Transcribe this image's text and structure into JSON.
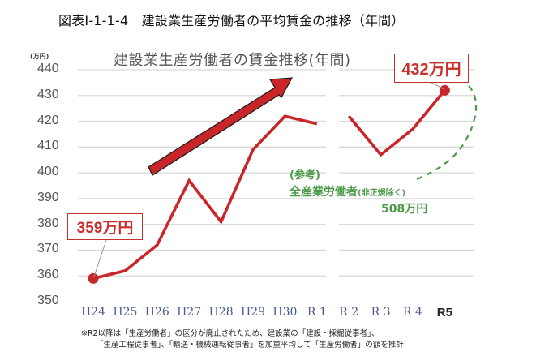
{
  "figure_title": "図表Ⅰ-1-1-4　建設業生産労働者の平均賃金の推移（年間）",
  "chart_data": {
    "type": "line",
    "title": "建設業生産労働者の賃金推移(年間)",
    "ylabel": "(万円)",
    "xlabel": "",
    "ylim": [
      350,
      440
    ],
    "yticks": [
      440,
      430,
      420,
      410,
      400,
      390,
      380,
      370,
      360,
      350
    ],
    "grid": true,
    "categories": [
      "H24",
      "H25",
      "H26",
      "H27",
      "H28",
      "H29",
      "H30",
      "R1",
      "R2",
      "R3",
      "R4",
      "R5"
    ],
    "series": [
      {
        "name": "建設業生産労働者",
        "color": "#c9262a",
        "values": [
          359,
          362,
          372,
          397,
          381,
          409,
          422,
          419,
          422,
          407,
          417,
          432
        ],
        "break_between": [
          "R1",
          "R2"
        ]
      }
    ],
    "annotations": [
      {
        "label": "359万円",
        "point": "H24"
      },
      {
        "label": "432万円",
        "point": "R5"
      },
      {
        "label": "(参考)",
        "color": "#4c9a4a"
      },
      {
        "label": "全産業労働者",
        "sub": "(非正規除く)",
        "color": "#4c9a4a"
      },
      {
        "label": "508万円",
        "color": "#4c9a4a"
      },
      {
        "label": "trend-arrow-up",
        "color": "#c9262a"
      }
    ],
    "legend": "none"
  },
  "labels": {
    "unit": "(万円)",
    "callout_start": "359万円",
    "callout_end": "432万円",
    "ref_heading": "(参考)",
    "ref_name": "全産業労働者",
    "ref_sub": "(非正規除く)",
    "ref_value": "508万円"
  },
  "notes": [
    "※R2以降は「生産労働者」の区分が廃止されたため、建設業の「建設・採掘従事者」、",
    "「生産工程従事者」、「輸送・機械運転従事者」を加重平均して「生産労働者」の額を推計"
  ]
}
